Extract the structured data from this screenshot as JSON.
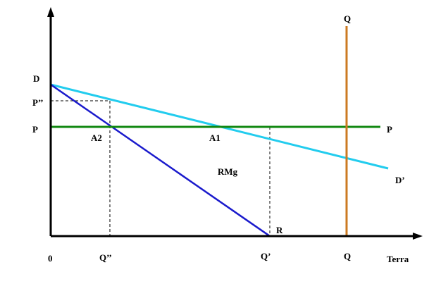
{
  "labels": {
    "d": "D",
    "p_double_prime": "P’’",
    "p_left": "P",
    "p_right": "P",
    "a2": "A2",
    "a1": "A1",
    "rmg": "RMg",
    "r": "R",
    "d_prime": "D’",
    "q_top": "Q",
    "origin": "0",
    "q_double_prime": "Q’’",
    "q_prime": "Q’",
    "q_bottom": "Q",
    "x_axis": "Terra"
  }
}
